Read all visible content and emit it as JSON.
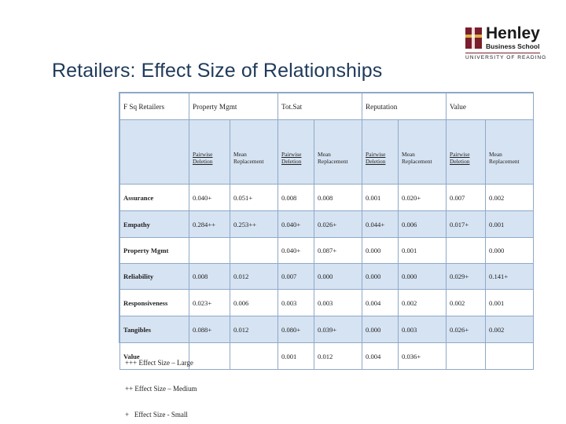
{
  "slide": {
    "title": "Retailers: Effect Size of Relationships"
  },
  "logo": {
    "name": "Henley",
    "sub": "Business School",
    "university": "UNIVERSITY OF READING"
  },
  "table": {
    "corner": "F Sq Retailers",
    "groups": [
      "Property Mgmt",
      "Tot.Sat",
      "Reputation",
      "Value"
    ],
    "subheaders": [
      "Pairwise Deletion",
      "Mean Replacement",
      "Pairwise Deletion",
      "Mean Replacement",
      "Pairwise Deletion",
      "Mean Replacement",
      "Pairwise Deletion",
      "Mean Replacement"
    ],
    "rows": [
      {
        "label": "Assurance",
        "cells": [
          "0.040+",
          "0.051+",
          "0.008",
          "0.008",
          "0.001",
          "0.020+",
          "0.007",
          "0.002"
        ]
      },
      {
        "label": "Empathy",
        "cells": [
          "0.284++",
          "0.253++",
          "0.040+",
          "0.026+",
          "0.044+",
          "0.006",
          "0.017+",
          "0.001"
        ]
      },
      {
        "label": "Property Mgmt",
        "cells": [
          "",
          "",
          "0.040+",
          "0.087+",
          "0.000",
          "0.001",
          "",
          "0.000"
        ]
      },
      {
        "label": "Reliability",
        "cells": [
          "0.008",
          "0.012",
          "0.007",
          "0.000",
          "0.000",
          "0.000",
          "0.029+",
          "0.141+"
        ]
      },
      {
        "label": "Responsiveness",
        "cells": [
          "0.023+",
          "0.006",
          "0.003",
          "0.003",
          "0.004",
          "0.002",
          "0.002",
          "0.001"
        ]
      },
      {
        "label": "Tangibles",
        "cells": [
          "0.088+",
          "0.012",
          "0.080+",
          "0.039+",
          "0.000",
          "0.003",
          "0.026+",
          "0.002"
        ]
      },
      {
        "label": "Value",
        "cells": [
          "",
          "",
          "0.001",
          "0.012",
          "0.004",
          "0.036+",
          "",
          ""
        ]
      }
    ]
  },
  "legend": [
    "+++ Effect Size – Large",
    "++ Effect Size – Medium",
    "+   Effect Size - Small"
  ]
}
